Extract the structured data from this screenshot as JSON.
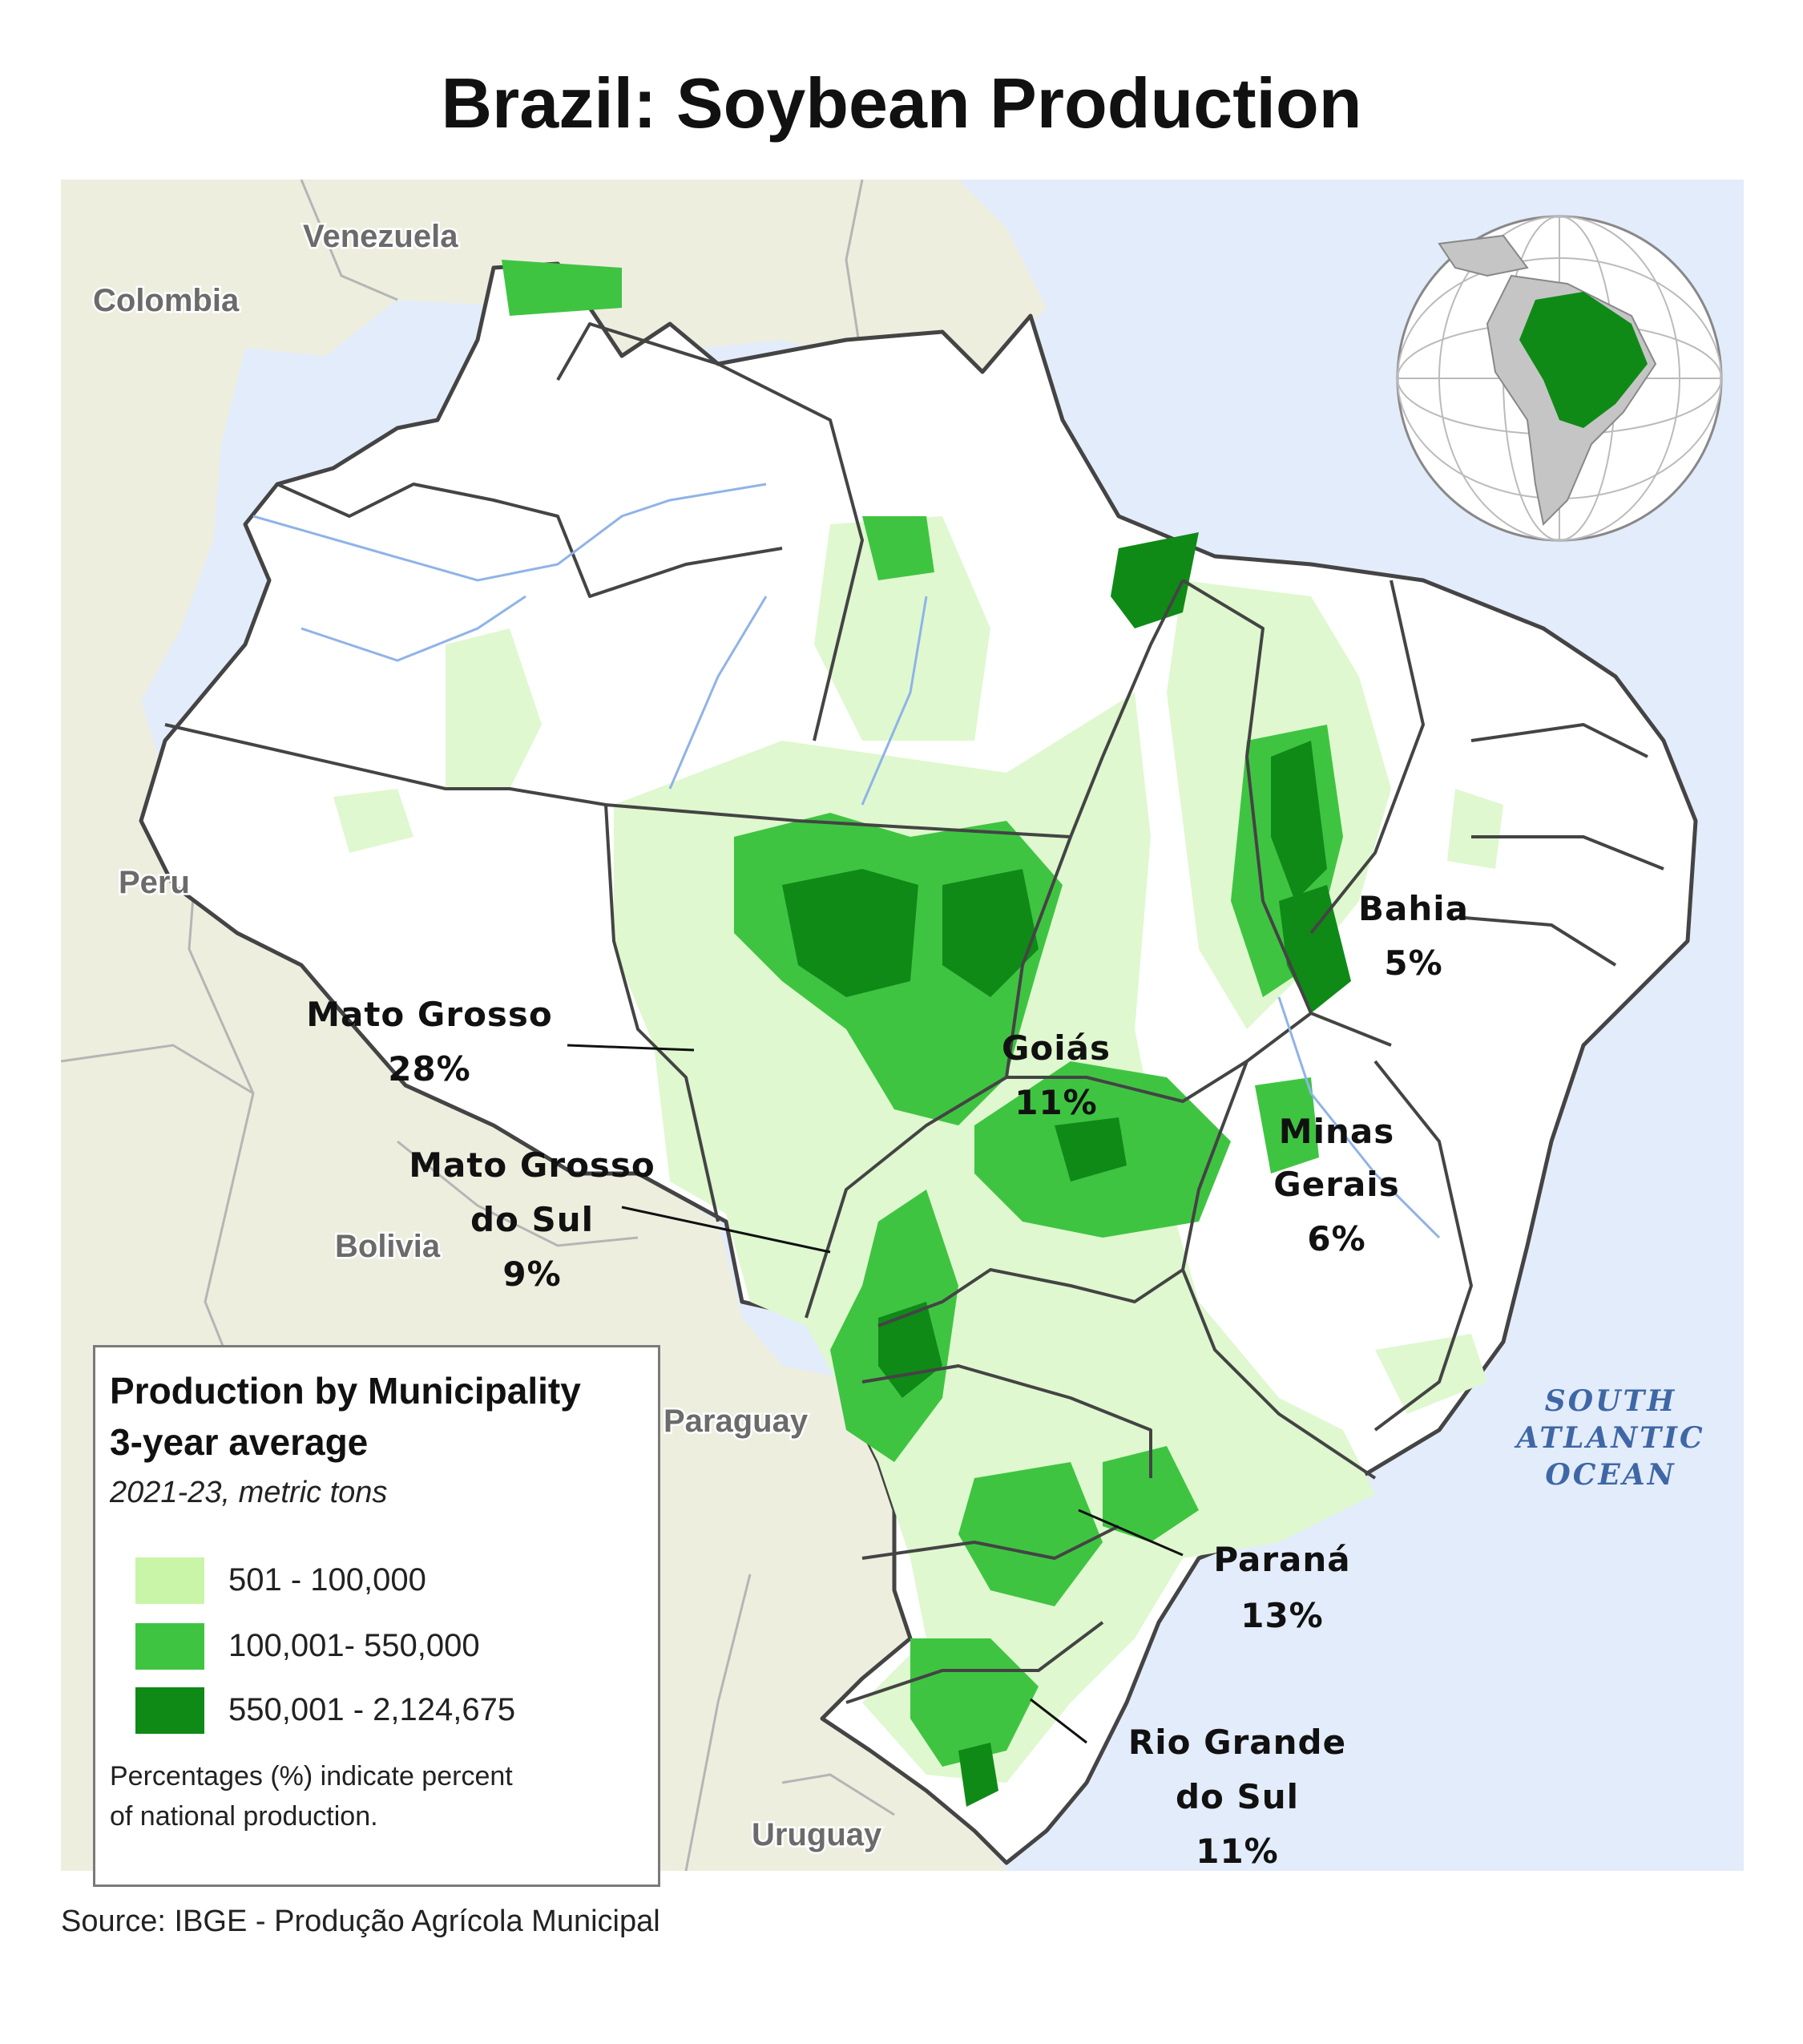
{
  "title": "Brazil: Soybean Production",
  "countries": {
    "venezuela": "Venezuela",
    "colombia": "Colombia",
    "peru": "Peru",
    "bolivia": "Bolivia",
    "paraguay": "Paraguay",
    "uruguay": "Uruguay"
  },
  "ocean": {
    "line1": "SOUTH",
    "line2": "ATLANTIC",
    "line3": "OCEAN"
  },
  "states": {
    "bahia": {
      "name": "Bahia",
      "share": "5%"
    },
    "mato_grosso": {
      "name": "Mato Grosso",
      "share": "28%"
    },
    "goias": {
      "name": "Goiás",
      "share": "11%"
    },
    "minas_gerais": {
      "name_line1": "Minas",
      "name_line2": "Gerais",
      "share": "6%"
    },
    "mato_grosso_do_sul": {
      "name_line1": "Mato Grosso",
      "name_line2": "do Sul",
      "share": "9%"
    },
    "parana": {
      "name": "Paraná",
      "share": "13%"
    },
    "rio_grande_do_sul": {
      "name_line1": "Rio Grande",
      "name_line2": "do Sul",
      "share": "11%"
    }
  },
  "legend": {
    "title_line1": "Production by Municipality",
    "title_line2": "3-year average",
    "subtitle": "2021-23, metric tons",
    "items": [
      {
        "label": "501 - 100,000",
        "color": "#c8f5a8"
      },
      {
        "label": "100,001- 550,000",
        "color": "#3fc442"
      },
      {
        "label": "550,001 - 2,124,675",
        "color": "#0f8a17"
      }
    ],
    "note": "Percentages (%) indicate percent of national production."
  },
  "colors": {
    "ocean": "#e3ecfa",
    "land": "#eeeedf",
    "brazil": "#ffffff",
    "low": "#dff8cf",
    "mid": "#3fc442",
    "high": "#0f8a17"
  },
  "source": "Source: IBGE - Produção Agrícola Municipal"
}
